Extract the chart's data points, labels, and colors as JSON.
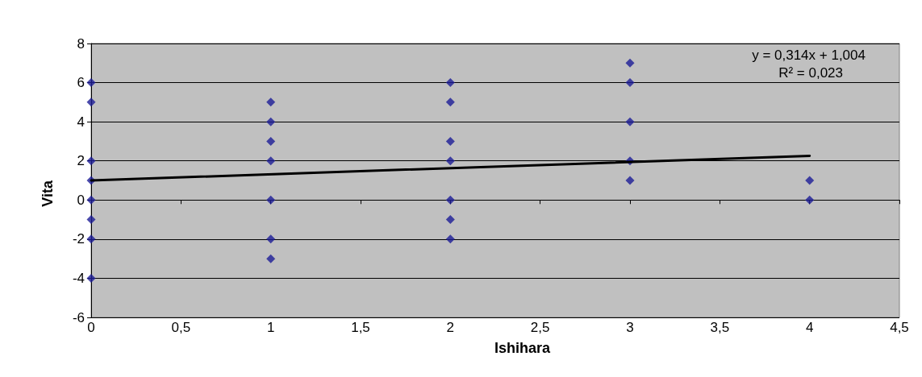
{
  "chart_data": {
    "type": "scatter",
    "xlabel": "Ishihara",
    "ylabel": "Vita",
    "series": [
      {
        "color": "#1c1c96",
        "x": [
          0,
          0,
          0,
          0,
          0,
          0,
          0,
          0,
          1,
          1,
          1,
          1,
          1,
          1,
          1,
          2,
          2,
          2,
          2,
          2,
          2,
          2,
          3,
          3,
          3,
          3,
          3,
          4,
          4
        ],
        "values": [
          6,
          5,
          2,
          1,
          0,
          -1,
          -2,
          -4,
          5,
          4,
          3,
          2,
          0,
          -2,
          -3,
          6,
          5,
          3,
          2,
          0,
          -1,
          -2,
          7,
          6,
          4,
          2,
          1,
          1,
          0
        ]
      },
      {
        "type": "line",
        "color": "#000000",
        "x": [
          0,
          4
        ],
        "values": [
          1.0,
          2.26
        ],
        "marker": "none"
      }
    ],
    "marker": "diamond",
    "xlim": [
      0,
      4.5
    ],
    "xticks": [
      0,
      {
        "value": 0.5,
        "label": "0,5"
      },
      1,
      {
        "value": 1.5,
        "label": "1,5"
      },
      2,
      {
        "value": 2.5,
        "label": "2,5"
      },
      3,
      {
        "value": 3.5,
        "label": "3,5"
      },
      4,
      {
        "value": 4.5,
        "label": "4,5"
      }
    ],
    "ylim": [
      -6,
      8
    ],
    "yticks": [
      -6,
      -4,
      -2,
      0,
      2,
      4,
      6,
      8
    ],
    "grid": "y",
    "annotations": [
      "y = 0,314x + 1,004",
      "R² = 0,023"
    ]
  }
}
